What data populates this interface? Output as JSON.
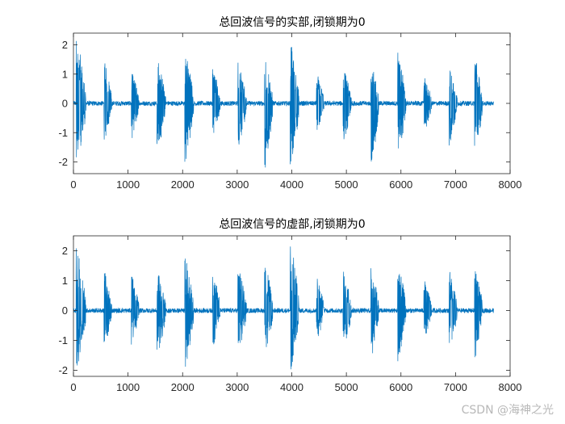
{
  "chart_data": [
    {
      "type": "line",
      "title": "总回波信号的实部,闭锁期为0",
      "xlabel": "",
      "ylabel": "",
      "xlim": [
        0,
        8000
      ],
      "ylim": [
        -2.4,
        2.4
      ],
      "x_ticks": [
        0,
        1000,
        2000,
        3000,
        4000,
        5000,
        6000,
        7000,
        8000
      ],
      "y_ticks": [
        -2,
        -1,
        0,
        1,
        2
      ],
      "x_tick_labels": [
        "0",
        "1000",
        "2000",
        "3000",
        "4000",
        "5000",
        "6000",
        "7000",
        "8000"
      ],
      "y_tick_labels": [
        "-2",
        "-1",
        "0",
        "1",
        "2"
      ],
      "grid": false,
      "color": "#0072BD",
      "series": [
        {
          "signal_extent": [
            0,
            7700
          ],
          "baseline_noise": 0.08,
          "bursts": [
            {
              "start": 50,
              "end": 230,
              "max": 2.4,
              "min": -2.3
            },
            {
              "start": 560,
              "end": 700,
              "max": 1.5,
              "min": -1.4
            },
            {
              "start": 1060,
              "end": 1200,
              "max": 1.2,
              "min": -1.3
            },
            {
              "start": 1530,
              "end": 1690,
              "max": 1.6,
              "min": -1.8
            },
            {
              "start": 2040,
              "end": 2200,
              "max": 1.9,
              "min": -2.3
            },
            {
              "start": 2550,
              "end": 2690,
              "max": 1.3,
              "min": -1.2
            },
            {
              "start": 3010,
              "end": 3170,
              "max": 1.5,
              "min": -1.6
            },
            {
              "start": 3500,
              "end": 3650,
              "max": 1.7,
              "min": -2.4
            },
            {
              "start": 3970,
              "end": 4130,
              "max": 2.2,
              "min": -2.4
            },
            {
              "start": 4450,
              "end": 4590,
              "max": 1.1,
              "min": -1.0
            },
            {
              "start": 4940,
              "end": 5090,
              "max": 1.3,
              "min": -1.4
            },
            {
              "start": 5450,
              "end": 5590,
              "max": 1.5,
              "min": -2.4
            },
            {
              "start": 5940,
              "end": 6090,
              "max": 1.8,
              "min": -2.0
            },
            {
              "start": 6420,
              "end": 6560,
              "max": 1.0,
              "min": -1.1
            },
            {
              "start": 6880,
              "end": 7030,
              "max": 1.3,
              "min": -1.5
            },
            {
              "start": 7350,
              "end": 7490,
              "max": 1.7,
              "min": -1.9
            }
          ]
        }
      ]
    },
    {
      "type": "line",
      "title": "总回波信号的虚部,闭锁期为0",
      "xlabel": "",
      "ylabel": "",
      "xlim": [
        0,
        8000
      ],
      "ylim": [
        -2.2,
        2.5
      ],
      "x_ticks": [
        0,
        1000,
        2000,
        3000,
        4000,
        5000,
        6000,
        7000,
        8000
      ],
      "y_ticks": [
        -2,
        -1,
        0,
        1,
        2
      ],
      "x_tick_labels": [
        "0",
        "1000",
        "2000",
        "3000",
        "4000",
        "5000",
        "6000",
        "7000",
        "8000"
      ],
      "y_tick_labels": [
        "-2",
        "-1",
        "0",
        "1",
        "2"
      ],
      "grid": false,
      "color": "#0072BD",
      "series": [
        {
          "signal_extent": [
            0,
            7700
          ],
          "baseline_noise": 0.08,
          "bursts": [
            {
              "start": 50,
              "end": 230,
              "max": 2.3,
              "min": -2.1
            },
            {
              "start": 560,
              "end": 700,
              "max": 1.4,
              "min": -1.3
            },
            {
              "start": 1060,
              "end": 1200,
              "max": 1.3,
              "min": -1.2
            },
            {
              "start": 1530,
              "end": 1690,
              "max": 1.5,
              "min": -1.6
            },
            {
              "start": 2040,
              "end": 2200,
              "max": 1.9,
              "min": -2.1
            },
            {
              "start": 2550,
              "end": 2690,
              "max": 1.4,
              "min": -1.3
            },
            {
              "start": 3010,
              "end": 3170,
              "max": 1.6,
              "min": -1.5
            },
            {
              "start": 3500,
              "end": 3650,
              "max": 1.8,
              "min": -1.6
            },
            {
              "start": 3970,
              "end": 4130,
              "max": 2.5,
              "min": -2.2
            },
            {
              "start": 4450,
              "end": 4590,
              "max": 1.2,
              "min": -1.2
            },
            {
              "start": 4940,
              "end": 5090,
              "max": 1.4,
              "min": -1.4
            },
            {
              "start": 5450,
              "end": 5590,
              "max": 1.6,
              "min": -1.7
            },
            {
              "start": 5940,
              "end": 6090,
              "max": 1.7,
              "min": -1.8
            },
            {
              "start": 6420,
              "end": 6560,
              "max": 1.1,
              "min": -1.2
            },
            {
              "start": 6880,
              "end": 7030,
              "max": 1.4,
              "min": -1.5
            },
            {
              "start": 7350,
              "end": 7490,
              "max": 1.6,
              "min": -1.7
            }
          ]
        }
      ]
    }
  ],
  "watermark": "CSDN @海神之光"
}
